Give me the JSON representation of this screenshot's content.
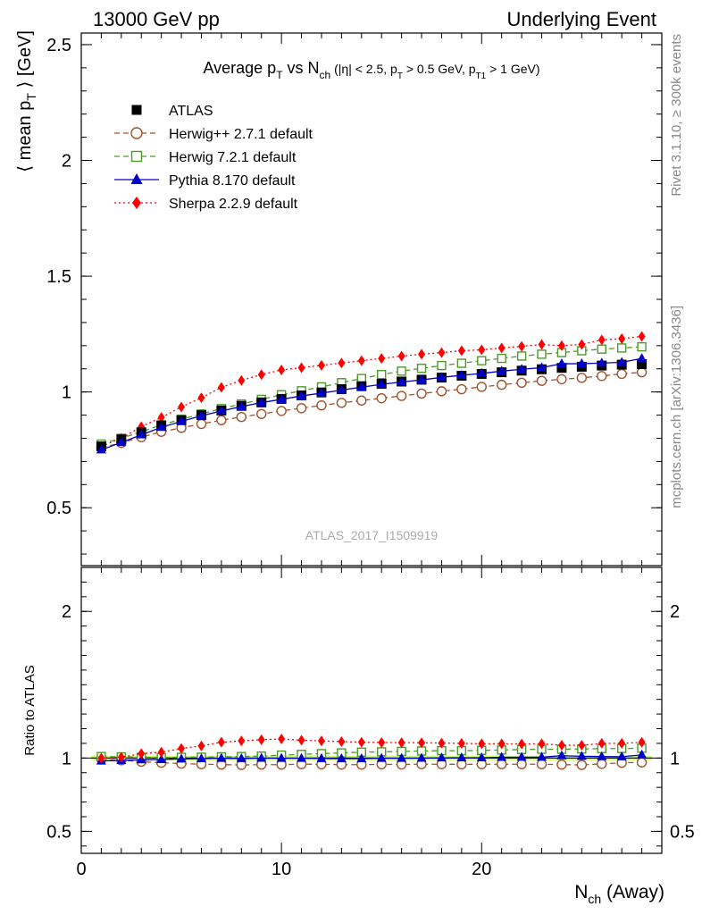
{
  "header": {
    "left": "13000 GeV pp",
    "right": "Underlying Event"
  },
  "side_labels": {
    "rivet": "Rivet 3.1.10, ≥ 300k events",
    "mcplots": "mcplots.cern.ch [arXiv:1306.3436]"
  },
  "analysis_id": "ATLAS_2017_I1509919",
  "chart_data": [
    {
      "type": "line",
      "title": "Average p_T vs N_ch (|η| < 2.5, p_T > 0.5 GeV, p_T1 > 1 GeV)",
      "title_parts": {
        "a": "Average p",
        "a_sub": "T",
        "b": " vs N",
        "b_sub": "ch",
        "c": " (|η| < 2.5, p",
        "c_sub": "T",
        "d": " > 0.5 GeV, p",
        "d_sub": "T1",
        "e": " > 1 GeV)"
      },
      "ylabel_parts": {
        "a": "⟨ mean p",
        "sub": "T",
        "b": " ⟩ [GeV]"
      },
      "xlabel_parts": {
        "a": "N",
        "sub": "ch",
        "b": " (Away)"
      },
      "xlim": [
        0,
        29
      ],
      "ylim": [
        0.25,
        2.55
      ],
      "x_ticks": [
        0,
        10,
        20
      ],
      "y_ticks": [
        0.5,
        1,
        1.5,
        2,
        2.5
      ],
      "y_tick_labels": [
        "0.5",
        "1",
        "1.5",
        "2",
        "2.5"
      ],
      "legend_position": "top-left",
      "x": [
        1,
        2,
        3,
        4,
        5,
        6,
        7,
        8,
        9,
        10,
        11,
        12,
        13,
        14,
        15,
        16,
        17,
        18,
        19,
        20,
        21,
        22,
        23,
        24,
        25,
        26,
        27,
        28
      ],
      "series": [
        {
          "name": "ATLAS",
          "color": "#000000",
          "marker": "filled-square",
          "line": "none",
          "values": [
            0.765,
            0.795,
            0.825,
            0.855,
            0.878,
            0.9,
            0.92,
            0.94,
            0.955,
            0.97,
            0.985,
            0.998,
            1.012,
            1.025,
            1.035,
            1.045,
            1.053,
            1.062,
            1.07,
            1.078,
            1.085,
            1.092,
            1.098,
            1.104,
            1.109,
            1.114,
            1.118,
            1.12
          ]
        },
        {
          "name": "Herwig++ 2.7.1 default",
          "color": "#a0522d",
          "marker": "open-circle",
          "line": "dashed",
          "values": [
            0.76,
            0.78,
            0.805,
            0.828,
            0.845,
            0.862,
            0.878,
            0.892,
            0.905,
            0.918,
            0.93,
            0.942,
            0.953,
            0.963,
            0.973,
            0.983,
            0.993,
            1.003,
            1.012,
            1.022,
            1.031,
            1.04,
            1.048,
            1.055,
            1.061,
            1.069,
            1.078,
            1.085
          ]
        },
        {
          "name": "Herwig 7.2.1 default",
          "color": "#4c9a2a",
          "marker": "open-square",
          "line": "dashed",
          "values": [
            0.775,
            0.8,
            0.828,
            0.858,
            0.882,
            0.905,
            0.928,
            0.948,
            0.968,
            0.988,
            1.005,
            1.022,
            1.04,
            1.058,
            1.075,
            1.09,
            1.102,
            1.114,
            1.124,
            1.135,
            1.145,
            1.155,
            1.163,
            1.17,
            1.178,
            1.185,
            1.19,
            1.195
          ]
        },
        {
          "name": "Pythia 8.170 default",
          "color": "#0000cc",
          "marker": "filled-triangle",
          "line": "solid",
          "values": [
            0.75,
            0.782,
            0.815,
            0.847,
            0.873,
            0.897,
            0.918,
            0.937,
            0.954,
            0.968,
            0.983,
            0.995,
            1.008,
            1.021,
            1.033,
            1.043,
            1.052,
            1.063,
            1.072,
            1.08,
            1.09,
            1.098,
            1.105,
            1.122,
            1.122,
            1.125,
            1.128,
            1.145
          ]
        },
        {
          "name": "Sherpa 2.2.9 default",
          "color": "#ff0000",
          "marker": "filled-diamond",
          "line": "dotted",
          "values": [
            0.765,
            0.8,
            0.85,
            0.89,
            0.935,
            0.975,
            1.02,
            1.05,
            1.075,
            1.095,
            1.105,
            1.115,
            1.125,
            1.135,
            1.145,
            1.155,
            1.163,
            1.17,
            1.178,
            1.182,
            1.19,
            1.197,
            1.205,
            1.2,
            1.205,
            1.225,
            1.23,
            1.24
          ]
        }
      ]
    },
    {
      "type": "line",
      "ylabel": "Ratio to ATLAS",
      "xlim": [
        0,
        29
      ],
      "ylim": [
        0.35,
        2.3
      ],
      "y_ticks": [
        0.5,
        1,
        2
      ],
      "y_tick_labels": [
        "0.5",
        "1",
        "2"
      ],
      "x_tick_labels": [
        "0",
        "10",
        "20"
      ],
      "reference_band": {
        "color": "#ccff66",
        "half_width": 0.015
      },
      "series": [
        {
          "name": "Herwig++ 2.7.1 default",
          "values": [
            0.99,
            0.985,
            0.975,
            0.968,
            0.962,
            0.958,
            0.955,
            0.953,
            0.955,
            0.955,
            0.958,
            0.957,
            0.955,
            0.955,
            0.957,
            0.956,
            0.958,
            0.958,
            0.957,
            0.958,
            0.958,
            0.958,
            0.958,
            0.955,
            0.953,
            0.96,
            0.968,
            0.97
          ]
        },
        {
          "name": "Herwig 7.2.1 default",
          "values": [
            1.01,
            1.008,
            1.005,
            1.003,
            1.005,
            1.006,
            1.008,
            1.01,
            1.013,
            1.02,
            1.025,
            1.03,
            1.035,
            1.04,
            1.042,
            1.045,
            1.048,
            1.05,
            1.05,
            1.052,
            1.055,
            1.058,
            1.06,
            1.06,
            1.062,
            1.064,
            1.065,
            1.067
          ]
        },
        {
          "name": "Pythia 8.170 default",
          "values": [
            0.98,
            0.984,
            0.988,
            0.99,
            0.994,
            0.996,
            0.998,
            0.997,
            0.999,
            0.998,
            0.998,
            0.997,
            0.996,
            0.996,
            0.998,
            0.998,
            0.999,
            1.001,
            1.002,
            1.002,
            1.005,
            1.006,
            1.006,
            1.016,
            1.012,
            1.01,
            1.009,
            1.022
          ]
        },
        {
          "name": "Sherpa 2.2.9 default",
          "values": [
            1.0,
            1.006,
            1.03,
            1.04,
            1.065,
            1.083,
            1.108,
            1.117,
            1.125,
            1.13,
            1.122,
            1.117,
            1.112,
            1.108,
            1.106,
            1.105,
            1.104,
            1.102,
            1.1,
            1.097,
            1.097,
            1.096,
            1.097,
            1.087,
            1.087,
            1.1,
            1.1,
            1.107
          ]
        }
      ]
    }
  ]
}
